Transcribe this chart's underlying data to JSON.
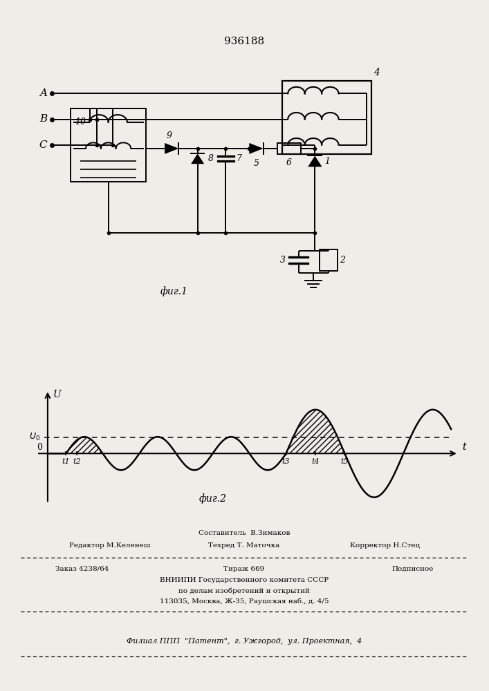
{
  "patent_number": "936188",
  "fig1_label": "фиг.1",
  "fig2_label": "фиг.2",
  "background_color": "#f0ede8",
  "line_color": "#000000"
}
